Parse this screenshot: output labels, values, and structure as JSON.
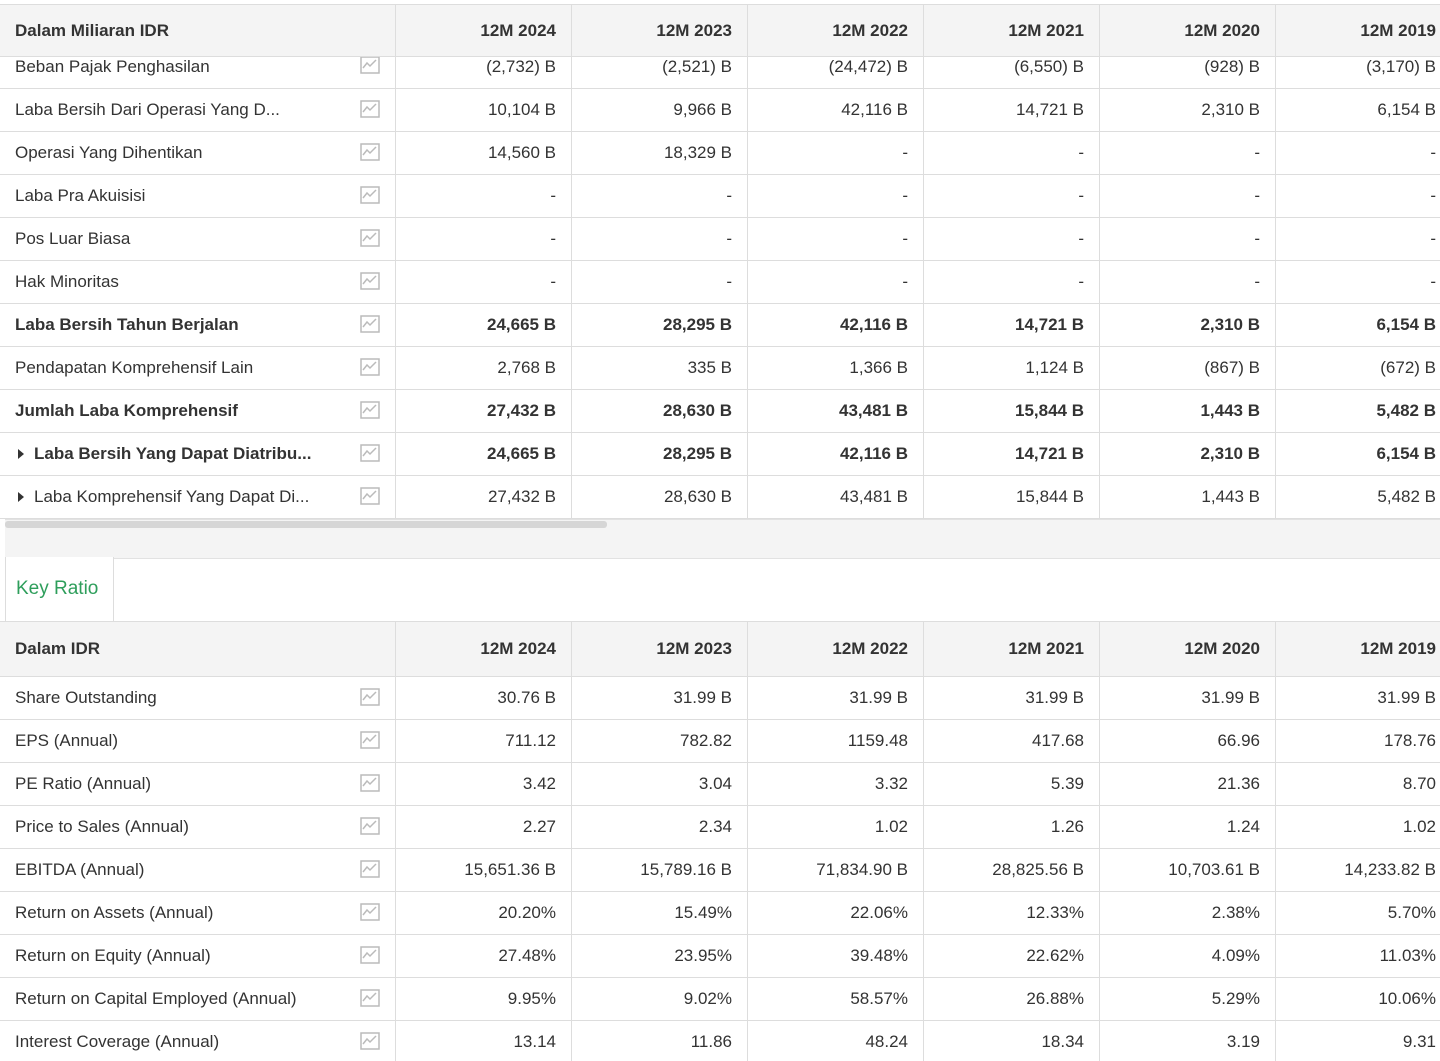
{
  "income_table": {
    "header": [
      "Dalam Miliaran IDR",
      "12M 2024",
      "12M 2023",
      "12M 2022",
      "12M 2021",
      "12M 2020",
      "12M 2019"
    ],
    "rows": [
      {
        "label": "Beban Pajak Penghasilan",
        "bold": false,
        "expandable": false,
        "cells": [
          "(2,732) B",
          "(2,521) B",
          "(24,472) B",
          "(6,550) B",
          "(928) B",
          "(3,170) B"
        ]
      },
      {
        "label": "Laba Bersih Dari Operasi Yang D...",
        "bold": false,
        "expandable": false,
        "cells": [
          "10,104 B",
          "9,966 B",
          "42,116 B",
          "14,721 B",
          "2,310 B",
          "6,154 B"
        ]
      },
      {
        "label": "Operasi Yang Dihentikan",
        "bold": false,
        "expandable": false,
        "cells": [
          "14,560 B",
          "18,329 B",
          "-",
          "-",
          "-",
          "-"
        ]
      },
      {
        "label": "Laba Pra Akuisisi",
        "bold": false,
        "expandable": false,
        "cells": [
          "-",
          "-",
          "-",
          "-",
          "-",
          "-"
        ]
      },
      {
        "label": "Pos Luar Biasa",
        "bold": false,
        "expandable": false,
        "cells": [
          "-",
          "-",
          "-",
          "-",
          "-",
          "-"
        ]
      },
      {
        "label": "Hak Minoritas",
        "bold": false,
        "expandable": false,
        "cells": [
          "-",
          "-",
          "-",
          "-",
          "-",
          "-"
        ]
      },
      {
        "label": "Laba Bersih Tahun Berjalan",
        "bold": true,
        "expandable": false,
        "cells": [
          "24,665 B",
          "28,295 B",
          "42,116 B",
          "14,721 B",
          "2,310 B",
          "6,154 B"
        ]
      },
      {
        "label": "Pendapatan Komprehensif Lain",
        "bold": false,
        "expandable": false,
        "cells": [
          "2,768 B",
          "335 B",
          "1,366 B",
          "1,124 B",
          "(867) B",
          "(672) B"
        ]
      },
      {
        "label": "Jumlah Laba Komprehensif",
        "bold": true,
        "expandable": false,
        "cells": [
          "27,432 B",
          "28,630 B",
          "43,481 B",
          "15,844 B",
          "1,443 B",
          "5,482 B"
        ]
      },
      {
        "label": "Laba Bersih Yang Dapat Diatribu...",
        "bold": true,
        "expandable": true,
        "cells": [
          "24,665 B",
          "28,295 B",
          "42,116 B",
          "14,721 B",
          "2,310 B",
          "6,154 B"
        ]
      },
      {
        "label": "Laba Komprehensif Yang Dapat Di...",
        "bold": false,
        "expandable": true,
        "cells": [
          "27,432 B",
          "28,630 B",
          "43,481 B",
          "15,844 B",
          "1,443 B",
          "5,482 B"
        ]
      }
    ]
  },
  "tab": "Key Ratio",
  "ratio_table": {
    "header": [
      "Dalam IDR",
      "12M 2024",
      "12M 2023",
      "12M 2022",
      "12M 2021",
      "12M 2020",
      "12M 2019"
    ],
    "rows": [
      {
        "label": "Share Outstanding",
        "bold": false,
        "expandable": false,
        "cells": [
          "30.76 B",
          "31.99 B",
          "31.99 B",
          "31.99 B",
          "31.99 B",
          "31.99 B"
        ]
      },
      {
        "label": "EPS (Annual)",
        "bold": false,
        "expandable": false,
        "cells": [
          "711.12",
          "782.82",
          "1159.48",
          "417.68",
          "66.96",
          "178.76"
        ]
      },
      {
        "label": "PE Ratio (Annual)",
        "bold": false,
        "expandable": false,
        "cells": [
          "3.42",
          "3.04",
          "3.32",
          "5.39",
          "21.36",
          "8.70"
        ]
      },
      {
        "label": "Price to Sales (Annual)",
        "bold": false,
        "expandable": false,
        "cells": [
          "2.27",
          "2.34",
          "1.02",
          "1.26",
          "1.24",
          "1.02"
        ]
      },
      {
        "label": "EBITDA (Annual)",
        "bold": false,
        "expandable": false,
        "cells": [
          "15,651.36 B",
          "15,789.16 B",
          "71,834.90 B",
          "28,825.56 B",
          "10,703.61 B",
          "14,233.82 B"
        ]
      },
      {
        "label": "Return on Assets (Annual)",
        "bold": false,
        "expandable": false,
        "cells": [
          "20.20%",
          "15.49%",
          "22.06%",
          "12.33%",
          "2.38%",
          "5.70%"
        ]
      },
      {
        "label": "Return on Equity (Annual)",
        "bold": false,
        "expandable": false,
        "cells": [
          "27.48%",
          "23.95%",
          "39.48%",
          "22.62%",
          "4.09%",
          "11.03%"
        ]
      },
      {
        "label": "Return on Capital Employed (Annual)",
        "bold": false,
        "expandable": false,
        "cells": [
          "9.95%",
          "9.02%",
          "58.57%",
          "26.88%",
          "5.29%",
          "10.06%"
        ]
      },
      {
        "label": "Interest Coverage (Annual)",
        "bold": false,
        "expandable": false,
        "cells": [
          "13.14",
          "11.86",
          "48.24",
          "18.34",
          "3.19",
          "9.31"
        ]
      }
    ]
  }
}
